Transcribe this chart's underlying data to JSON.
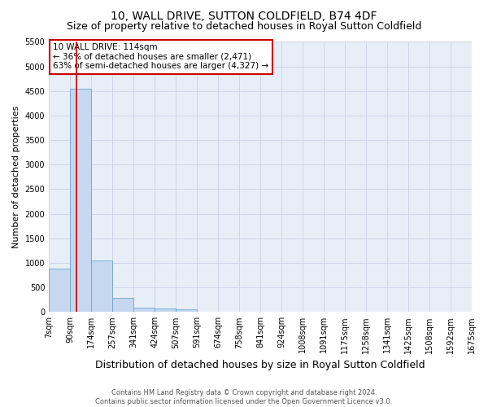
{
  "title": "10, WALL DRIVE, SUTTON COLDFIELD, B74 4DF",
  "subtitle": "Size of property relative to detached houses in Royal Sutton Coldfield",
  "xlabel": "Distribution of detached houses by size in Royal Sutton Coldfield",
  "ylabel": "Number of detached properties",
  "footer_line1": "Contains HM Land Registry data © Crown copyright and database right 2024.",
  "footer_line2": "Contains public sector information licensed under the Open Government Licence v3.0.",
  "annotation_line1": "10 WALL DRIVE: 114sqm",
  "annotation_line2": "← 36% of detached houses are smaller (2,471)",
  "annotation_line3": "63% of semi-detached houses are larger (4,327) →",
  "property_size": 114,
  "bin_edges": [
    7,
    90,
    174,
    257,
    341,
    424,
    507,
    591,
    674,
    758,
    841,
    924,
    1008,
    1091,
    1175,
    1258,
    1341,
    1425,
    1508,
    1592,
    1675
  ],
  "bar_values": [
    880,
    4550,
    1050,
    280,
    80,
    75,
    55,
    0,
    0,
    0,
    0,
    0,
    0,
    0,
    0,
    0,
    0,
    0,
    0,
    0
  ],
  "bar_color": "#c5d8ef",
  "bar_edge_color": "#6ba3cc",
  "vline_color": "#cc0000",
  "vline_x": 114,
  "ylim": [
    0,
    5500
  ],
  "yticks": [
    0,
    500,
    1000,
    1500,
    2000,
    2500,
    3000,
    3500,
    4000,
    4500,
    5000,
    5500
  ],
  "grid_color": "#cdd6e8",
  "bg_color": "#e8eef8",
  "annotation_box_color": "#cc0000",
  "title_fontsize": 10,
  "subtitle_fontsize": 9,
  "ylabel_fontsize": 8,
  "xlabel_fontsize": 9,
  "tick_fontsize": 7,
  "annotation_fontsize": 7.5,
  "footer_fontsize": 6
}
